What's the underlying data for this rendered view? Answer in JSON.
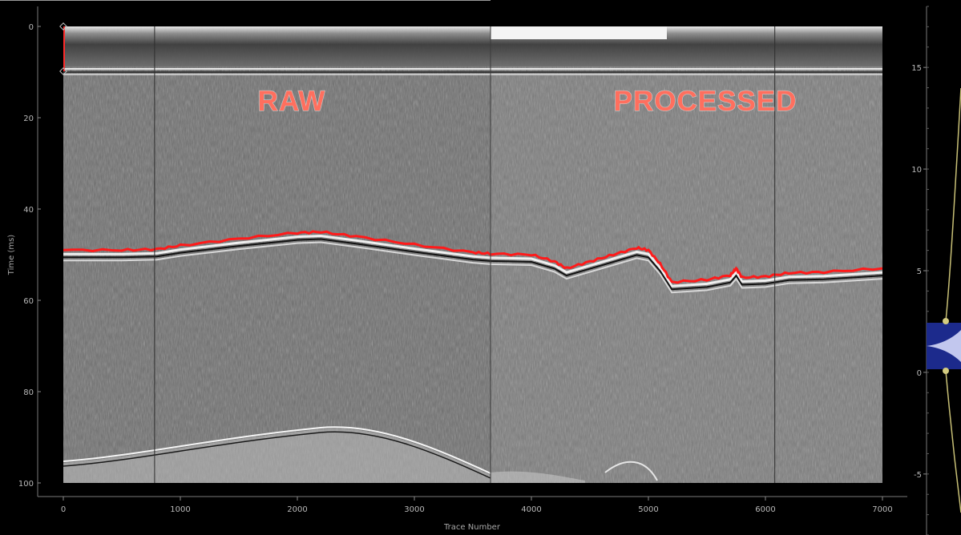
{
  "section_labels": {
    "raw": "RAW",
    "processed": "PROCESSED"
  },
  "chart_data": [
    {
      "type": "heatmap",
      "title": "",
      "xlabel": "Trace Number",
      "ylabel": "Time (ms)",
      "xlim": [
        0,
        7000
      ],
      "ylim": [
        100,
        0
      ],
      "x_ticks": [
        0,
        1000,
        2000,
        3000,
        4000,
        5000,
        6000,
        7000
      ],
      "y_ticks": [
        0,
        20,
        40,
        60,
        80,
        100
      ],
      "x_boundary": 3650,
      "vertical_lines_x": [
        780,
        6080
      ],
      "pick_line": {
        "color": "#ff1a1a",
        "x": [
          0,
          500,
          800,
          1000,
          1500,
          2000,
          2200,
          2500,
          3000,
          3500,
          3650,
          4000,
          4200,
          4300,
          4500,
          4700,
          4900,
          5000,
          5100,
          5200,
          5500,
          5700,
          5750,
          5800,
          6000,
          6200,
          6500,
          7000
        ],
        "y": [
          49,
          49,
          48.8,
          48,
          46.5,
          45.2,
          45,
          46,
          47.8,
          49.5,
          49.8,
          50,
          51.5,
          53,
          51.5,
          50,
          48.5,
          49,
          52,
          56,
          55.5,
          54.5,
          53,
          55,
          54.8,
          54,
          53.8,
          53
        ]
      }
    },
    {
      "type": "line",
      "ylim": [
        -8,
        18
      ],
      "y_ticks": [
        -5,
        0,
        5,
        10,
        15
      ],
      "line_color": "#c8c076",
      "fill_color": "#1c2a8c"
    }
  ]
}
